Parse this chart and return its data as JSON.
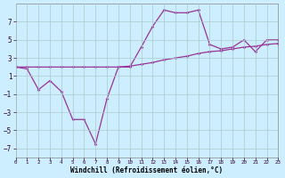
{
  "title": "",
  "xlabel": "Windchill (Refroidissement éolien,°C)",
  "background_color": "#cceeff",
  "grid_color": "#aacccc",
  "line_color": "#993399",
  "x_hours": [
    0,
    1,
    2,
    3,
    4,
    5,
    6,
    7,
    8,
    9,
    10,
    11,
    12,
    13,
    14,
    15,
    16,
    17,
    18,
    19,
    20,
    21,
    22,
    23
  ],
  "windchill_values": [
    2.0,
    1.8,
    -0.5,
    0.5,
    -0.7,
    -3.8,
    -3.8,
    -6.5,
    -1.5,
    2.0,
    2.0,
    4.2,
    6.5,
    8.3,
    8.0,
    8.0,
    8.3,
    4.5,
    4.0,
    4.2,
    5.0,
    3.7,
    5.0,
    5.0
  ],
  "temp_values": [
    2.0,
    2.0,
    2.0,
    2.0,
    2.0,
    2.0,
    2.0,
    2.0,
    2.0,
    2.0,
    2.1,
    2.3,
    2.5,
    2.8,
    3.0,
    3.2,
    3.5,
    3.7,
    3.8,
    4.0,
    4.2,
    4.3,
    4.5,
    4.6
  ],
  "ylim": [
    -8,
    9
  ],
  "yticks": [
    -7,
    -5,
    -3,
    -1,
    1,
    3,
    5,
    7
  ],
  "xlim": [
    0,
    23
  ]
}
